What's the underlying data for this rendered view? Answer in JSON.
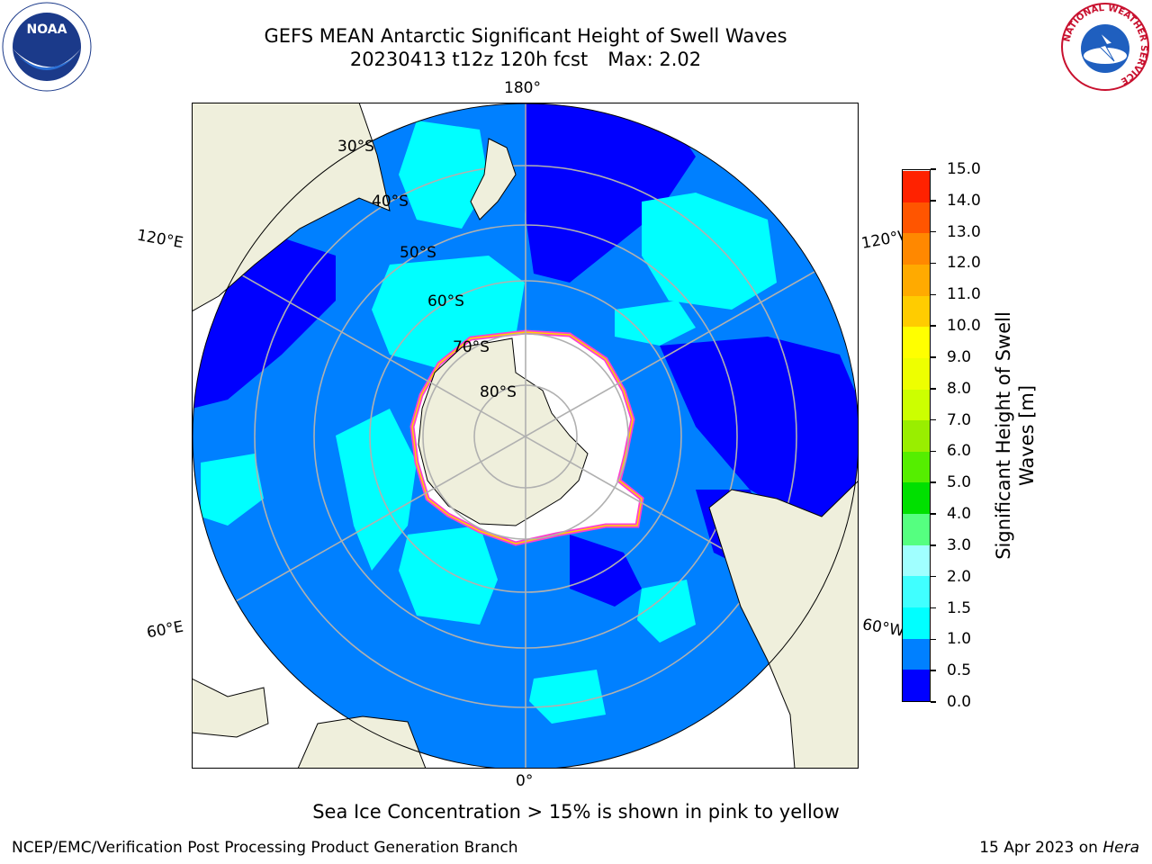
{
  "title": {
    "line1": "GEFS MEAN Antarctic Significant Height of Swell Waves",
    "line2": "20230413 t12z 120h fcst",
    "max_label": "Max: 2.02"
  },
  "logos": {
    "left": {
      "icon": "noaa-logo-icon",
      "text": "NOAA"
    },
    "right": {
      "icon": "national-weather-service-logo-icon",
      "text": "NATIONAL WEATHER SERVICE"
    }
  },
  "map": {
    "projection": "south polar stereographic",
    "longitude_labels": [
      "180°",
      "120°E",
      "120°W",
      "60°E",
      "60°W",
      "0°"
    ],
    "latitude_labels": [
      "30°S",
      "40°S",
      "50°S",
      "60°S",
      "70°S",
      "80°S"
    ],
    "colors": {
      "land": "#efefdc",
      "ocean_low": "#0000ff",
      "ocean_mid": "#0080ff",
      "ocean_high": "#00ffff",
      "ocean_higher": "#40ffff",
      "ice_edge": "#ff40d0",
      "graticule": "#b0b0b0"
    }
  },
  "colorbar": {
    "label_line1": "Significant Height of Swell",
    "label_line2": "Waves [m]",
    "ticks": [
      "0.0",
      "0.5",
      "1.0",
      "1.5",
      "2.0",
      "3.0",
      "4.0",
      "5.0",
      "6.0",
      "7.0",
      "8.0",
      "9.0",
      "10.0",
      "11.0",
      "12.0",
      "13.0",
      "14.0",
      "15.0"
    ],
    "colors": [
      "#0000ff",
      "#0080ff",
      "#00ffff",
      "#40ffff",
      "#a0ffff",
      "#55ff80",
      "#00e000",
      "#55ee00",
      "#99ee00",
      "#ccff00",
      "#eeff00",
      "#ffff00",
      "#ffcc00",
      "#ffaa00",
      "#ff8800",
      "#ff5500",
      "#ff2200"
    ]
  },
  "note": "Sea Ice Concentration > 15% is shown in pink to yellow",
  "footer": {
    "left": "NCEP/EMC/Verification Post Processing Product Generation Branch",
    "right_prefix": "15 Apr 2023 on ",
    "right_host": "Hera"
  }
}
